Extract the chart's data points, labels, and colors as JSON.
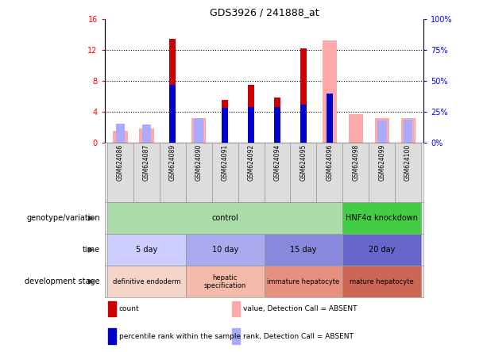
{
  "title": "GDS3926 / 241888_at",
  "samples": [
    "GSM624086",
    "GSM624087",
    "GSM624089",
    "GSM624090",
    "GSM624091",
    "GSM624092",
    "GSM624094",
    "GSM624095",
    "GSM624096",
    "GSM624098",
    "GSM624099",
    "GSM624100"
  ],
  "count_values": [
    0,
    0,
    13.5,
    0,
    5.5,
    7.5,
    5.8,
    12.2,
    0,
    0,
    0,
    0
  ],
  "percentile_values": [
    0,
    0,
    47,
    0,
    28,
    29,
    29,
    31,
    40,
    0,
    0,
    0
  ],
  "absent_value_values": [
    1.5,
    1.8,
    0,
    3.2,
    0,
    0,
    0,
    0,
    13.3,
    3.7,
    3.2,
    3.2
  ],
  "absent_rank_values": [
    2.5,
    2.4,
    0,
    3.2,
    0,
    0,
    0,
    0,
    0,
    0,
    2.9,
    3.0
  ],
  "ylim_left": [
    0,
    16
  ],
  "ylim_right": [
    0,
    100
  ],
  "yticks_left": [
    0,
    4,
    8,
    12,
    16
  ],
  "yticks_right": [
    0,
    25,
    50,
    75,
    100
  ],
  "color_count": "#cc0000",
  "color_percentile": "#0000cc",
  "color_absent_value": "#ffaaaa",
  "color_absent_rank": "#aaaaff",
  "genotype_groups": [
    {
      "label": "control",
      "start": 0,
      "end": 9,
      "color": "#aaddaa"
    },
    {
      "label": "HNF4α knockdown",
      "start": 9,
      "end": 12,
      "color": "#44cc44"
    }
  ],
  "time_groups": [
    {
      "label": "5 day",
      "start": 0,
      "end": 3,
      "color": "#ccccff"
    },
    {
      "label": "10 day",
      "start": 3,
      "end": 6,
      "color": "#aaaaee"
    },
    {
      "label": "15 day",
      "start": 6,
      "end": 9,
      "color": "#8888dd"
    },
    {
      "label": "20 day",
      "start": 9,
      "end": 12,
      "color": "#6666cc"
    }
  ],
  "dev_groups": [
    {
      "label": "definitive endoderm",
      "start": 0,
      "end": 3,
      "color": "#f5d5c8"
    },
    {
      "label": "hepatic\nspecification",
      "start": 3,
      "end": 6,
      "color": "#f5bbaa"
    },
    {
      "label": "immature hepatocyte",
      "start": 6,
      "end": 9,
      "color": "#e89080"
    },
    {
      "label": "mature hepatocyte",
      "start": 9,
      "end": 12,
      "color": "#cc6655"
    }
  ],
  "legend_items": [
    {
      "label": "count",
      "color": "#cc0000"
    },
    {
      "label": "percentile rank within the sample",
      "color": "#0000cc"
    },
    {
      "label": "value, Detection Call = ABSENT",
      "color": "#ffaaaa"
    },
    {
      "label": "rank, Detection Call = ABSENT",
      "color": "#aaaaff"
    }
  ],
  "fig_width": 6.13,
  "fig_height": 4.44,
  "dpi": 100
}
